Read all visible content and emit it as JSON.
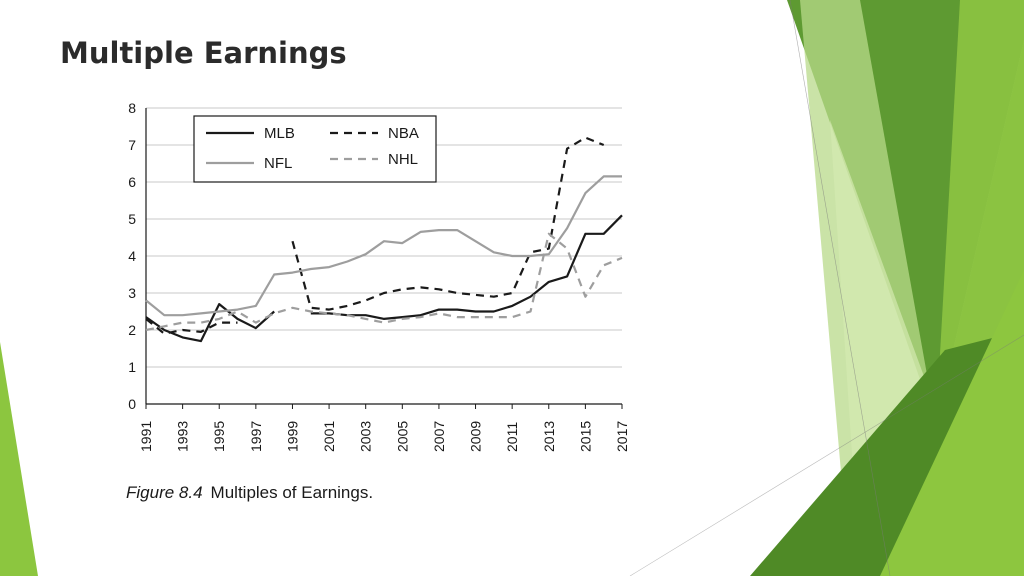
{
  "slide": {
    "title": "Multiple Earnings",
    "accent_colors": [
      "#5a8f2e",
      "#7cb342",
      "#9ccc4a",
      "#c5e08a",
      "#4c7d22"
    ]
  },
  "caption": {
    "figure_label": "Figure 8.4",
    "text": "Multiples of Earnings."
  },
  "chart_data": {
    "type": "line",
    "title": "",
    "xlabel": "",
    "ylabel": "",
    "xlim": [
      1991,
      2017
    ],
    "ylim": [
      0,
      8
    ],
    "yticks": [
      0,
      1,
      2,
      3,
      4,
      5,
      6,
      7,
      8
    ],
    "xticks": [
      1991,
      1993,
      1995,
      1997,
      1999,
      2001,
      2003,
      2005,
      2007,
      2009,
      2011,
      2013,
      2015,
      2017
    ],
    "grid": "horizontal",
    "legend_position": "top-left",
    "series": [
      {
        "name": "MLB",
        "style": "solid",
        "color": "#1a1a1a",
        "segments": [
          [
            [
              1991,
              2.35
            ],
            [
              1992,
              2.0
            ],
            [
              1993,
              1.8
            ],
            [
              1994,
              1.7
            ],
            [
              1995,
              2.7
            ],
            [
              1996,
              2.3
            ],
            [
              1997,
              2.05
            ],
            [
              1998,
              2.5
            ]
          ],
          [
            [
              2000,
              2.45
            ],
            [
              2001,
              2.45
            ],
            [
              2002,
              2.4
            ],
            [
              2003,
              2.4
            ],
            [
              2004,
              2.3
            ],
            [
              2005,
              2.35
            ],
            [
              2006,
              2.4
            ],
            [
              2007,
              2.55
            ],
            [
              2008,
              2.55
            ],
            [
              2009,
              2.5
            ],
            [
              2010,
              2.5
            ],
            [
              2011,
              2.65
            ],
            [
              2012,
              2.9
            ],
            [
              2013,
              3.3
            ],
            [
              2014,
              3.45
            ],
            [
              2015,
              4.6
            ],
            [
              2016,
              4.6
            ],
            [
              2017,
              5.1
            ]
          ]
        ]
      },
      {
        "name": "NBA",
        "style": "dashed",
        "color": "#1a1a1a",
        "segments": [
          [
            [
              1991,
              2.3
            ],
            [
              1992,
              1.9
            ],
            [
              1993,
              2.0
            ],
            [
              1994,
              1.95
            ],
            [
              1995,
              2.2
            ],
            [
              1996,
              2.2
            ]
          ],
          [
            [
              1999,
              4.4
            ],
            [
              2000,
              2.6
            ],
            [
              2001,
              2.55
            ],
            [
              2002,
              2.65
            ],
            [
              2003,
              2.8
            ],
            [
              2004,
              3.0
            ],
            [
              2005,
              3.1
            ],
            [
              2006,
              3.15
            ],
            [
              2007,
              3.1
            ],
            [
              2008,
              3.0
            ],
            [
              2009,
              2.95
            ],
            [
              2010,
              2.9
            ],
            [
              2011,
              3.0
            ],
            [
              2012,
              4.1
            ],
            [
              2013,
              4.2
            ],
            [
              2014,
              6.9
            ],
            [
              2015,
              7.2
            ],
            [
              2016,
              7.0
            ]
          ]
        ]
      },
      {
        "name": "NFL",
        "style": "solid",
        "color": "#9e9e9e",
        "segments": [
          [
            [
              1991,
              2.8
            ],
            [
              1992,
              2.4
            ],
            [
              1993,
              2.4
            ],
            [
              1994,
              2.45
            ],
            [
              1995,
              2.5
            ],
            [
              1996,
              2.55
            ],
            [
              1997,
              2.65
            ],
            [
              1998,
              3.5
            ],
            [
              1999,
              3.55
            ],
            [
              2000,
              3.65
            ],
            [
              2001,
              3.7
            ],
            [
              2002,
              3.85
            ],
            [
              2003,
              4.05
            ],
            [
              2004,
              4.4
            ],
            [
              2005,
              4.35
            ],
            [
              2006,
              4.65
            ],
            [
              2007,
              4.7
            ],
            [
              2008,
              4.7
            ],
            [
              2009,
              4.4
            ],
            [
              2010,
              4.1
            ],
            [
              2011,
              4.0
            ],
            [
              2012,
              4.0
            ],
            [
              2013,
              4.05
            ],
            [
              2014,
              4.75
            ],
            [
              2015,
              5.7
            ],
            [
              2016,
              6.15
            ],
            [
              2017,
              6.15
            ]
          ]
        ]
      },
      {
        "name": "NHL",
        "style": "dashed",
        "color": "#9e9e9e",
        "segments": [
          [
            [
              1991,
              2.0
            ],
            [
              1992,
              2.1
            ],
            [
              1993,
              2.2
            ],
            [
              1994,
              2.2
            ],
            [
              1995,
              2.3
            ],
            [
              1996,
              2.5
            ],
            [
              1997,
              2.2
            ],
            [
              1998,
              2.45
            ],
            [
              1999,
              2.6
            ],
            [
              2000,
              2.5
            ],
            [
              2001,
              2.45
            ],
            [
              2002,
              2.4
            ],
            [
              2003,
              2.3
            ],
            [
              2004,
              2.2
            ],
            [
              2005,
              2.3
            ],
            [
              2006,
              2.35
            ],
            [
              2007,
              2.45
            ],
            [
              2008,
              2.35
            ],
            [
              2009,
              2.35
            ],
            [
              2010,
              2.35
            ],
            [
              2011,
              2.35
            ],
            [
              2012,
              2.5
            ],
            [
              2013,
              4.6
            ],
            [
              2014,
              4.2
            ],
            [
              2015,
              2.9
            ],
            [
              2016,
              3.75
            ],
            [
              2017,
              3.95
            ]
          ]
        ]
      }
    ]
  }
}
